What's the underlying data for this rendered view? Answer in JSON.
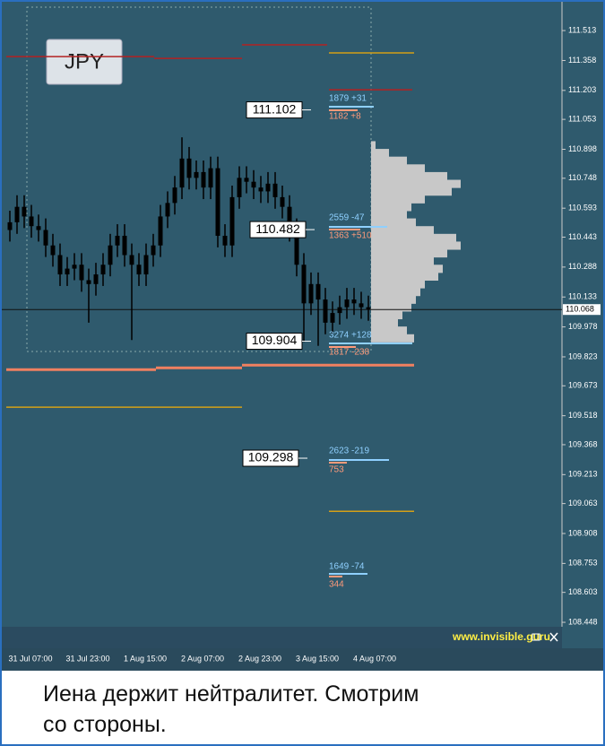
{
  "badge": "JPY",
  "chart_data": {
    "type": "candlestick",
    "categories": [
      null,
      null,
      null,
      "31 Jul 07:00",
      null,
      null,
      null,
      null,
      null,
      null,
      null,
      "31 Jul 23:00",
      null,
      null,
      null,
      null,
      null,
      null,
      null,
      "1 Aug 15:00",
      null,
      null,
      null,
      null,
      null,
      null,
      null,
      "2 Aug 07:00",
      null,
      null,
      null,
      null,
      null,
      null,
      null,
      "2 Aug 23:00",
      null,
      null,
      null,
      null,
      null,
      null,
      null,
      "3 Aug 15:00",
      null,
      null,
      null,
      null,
      null,
      null,
      null,
      "4 Aug 07:00"
    ],
    "open": [
      110.48,
      110.52,
      110.6,
      110.55,
      110.5,
      110.48,
      110.4,
      110.35,
      110.25,
      110.28,
      110.3,
      110.22,
      110.2,
      110.25,
      110.3,
      110.4,
      110.45,
      110.35,
      110.3,
      110.25,
      110.35,
      110.4,
      110.55,
      110.62,
      110.7,
      110.85,
      110.75,
      110.78,
      110.7,
      110.8,
      110.45,
      110.4,
      110.65,
      110.75,
      110.73,
      110.7,
      110.68,
      110.72,
      110.65,
      110.6,
      110.48,
      110.3,
      110.1,
      110.2,
      110.12,
      110.0,
      110.05,
      110.08,
      110.12,
      110.1,
      110.08,
      null
    ],
    "high": [
      110.58,
      110.66,
      110.66,
      110.61,
      110.56,
      110.54,
      110.46,
      110.41,
      110.34,
      110.36,
      110.36,
      110.28,
      110.31,
      110.36,
      110.46,
      110.51,
      110.51,
      110.41,
      110.36,
      110.41,
      110.46,
      110.61,
      110.68,
      110.76,
      110.96,
      110.91,
      110.84,
      110.84,
      110.86,
      110.86,
      110.51,
      110.71,
      110.81,
      110.81,
      110.79,
      110.76,
      110.78,
      110.78,
      110.71,
      110.66,
      110.54,
      110.36,
      110.26,
      110.26,
      110.18,
      110.11,
      110.14,
      110.18,
      110.18,
      110.16,
      110.14,
      null
    ],
    "low": [
      110.42,
      110.46,
      110.49,
      110.44,
      110.42,
      110.34,
      110.29,
      110.19,
      110.19,
      110.22,
      110.16,
      110.0,
      110.14,
      110.19,
      110.24,
      110.34,
      110.29,
      109.91,
      110.19,
      110.19,
      110.29,
      110.34,
      110.49,
      110.56,
      110.64,
      110.69,
      110.69,
      110.64,
      110.64,
      110.39,
      110.34,
      110.34,
      110.59,
      110.67,
      110.64,
      110.62,
      110.62,
      110.59,
      110.54,
      110.42,
      110.24,
      109.9,
      110.04,
      109.88,
      109.94,
      109.94,
      109.99,
      110.02,
      110.04,
      110.02,
      110.01,
      null
    ],
    "close": [
      110.52,
      110.6,
      110.55,
      110.5,
      110.48,
      110.4,
      110.35,
      110.25,
      110.28,
      110.3,
      110.22,
      110.2,
      110.25,
      110.3,
      110.4,
      110.45,
      110.35,
      110.3,
      110.25,
      110.35,
      110.4,
      110.55,
      110.62,
      110.7,
      110.85,
      110.75,
      110.78,
      110.7,
      110.8,
      110.45,
      110.4,
      110.65,
      110.75,
      110.73,
      110.7,
      110.68,
      110.72,
      110.65,
      110.6,
      110.48,
      110.3,
      110.1,
      110.2,
      110.12,
      110.0,
      110.05,
      110.08,
      110.12,
      110.1,
      110.08,
      110.07,
      null
    ],
    "color": "#000000",
    "ylim": [
      108.425,
      111.662
    ],
    "yticks": [
      111.513,
      111.358,
      111.203,
      111.053,
      110.898,
      110.748,
      110.593,
      110.443,
      110.288,
      110.133,
      109.978,
      109.823,
      109.673,
      109.518,
      109.368,
      109.213,
      109.063,
      108.908,
      108.753,
      108.603,
      108.448
    ],
    "last_price": 110.068,
    "levels": [
      {
        "value": 111.378,
        "color": "#b22222"
      },
      {
        "value": 111.369,
        "color": "#b22222"
      },
      {
        "value": 111.439,
        "color": "#b22222"
      },
      {
        "value": 111.206,
        "color": "#b22222"
      },
      {
        "value": 111.397,
        "color": "#d4a017"
      },
      {
        "value": 109.562,
        "color": "#d4a017"
      },
      {
        "value": 109.023,
        "color": "#d4a017"
      },
      {
        "value": 109.757,
        "color": "#f08060"
      },
      {
        "value": 109.766,
        "color": "#f08060"
      },
      {
        "value": 109.78,
        "color": "#f08060"
      }
    ],
    "price_labels": [
      111.102,
      110.482,
      109.904,
      109.298
    ],
    "annotations": [
      {
        "text": "1879 +31",
        "color": "#8fd0ff"
      },
      {
        "text": "1182 +8",
        "color": "#ff9a7a"
      },
      {
        "text": "2559 -47",
        "color": "#8fd0ff"
      },
      {
        "text": "1363 +510",
        "color": "#ff9a7a"
      },
      {
        "text": "3274 +128",
        "color": "#8fd0ff"
      },
      {
        "text": "1817 -238",
        "color": "#ff9a7a"
      },
      {
        "text": "2623 -219",
        "color": "#8fd0ff"
      },
      {
        "text": "753",
        "color": "#ff9a7a"
      },
      {
        "text": "1649 -74",
        "color": "#8fd0ff"
      },
      {
        "text": "344",
        "color": "#ff9a7a"
      }
    ],
    "volume_profile": {
      "prices": [
        110.92,
        110.88,
        110.84,
        110.8,
        110.76,
        110.72,
        110.68,
        110.64,
        110.6,
        110.56,
        110.52,
        110.48,
        110.44,
        110.4,
        110.36,
        110.32,
        110.28,
        110.24,
        110.2,
        110.16,
        110.12,
        110.08,
        110.04,
        110.0,
        109.96,
        109.92
      ],
      "values": [
        5,
        20,
        40,
        60,
        85,
        100,
        90,
        60,
        45,
        40,
        50,
        70,
        95,
        100,
        85,
        70,
        80,
        75,
        60,
        55,
        50,
        45,
        35,
        30,
        40,
        48
      ],
      "color": "#c8c8c8"
    }
  },
  "footer_link": "www.invisible.guru",
  "caption": [
    "Иена держит нейтралитет. Смотрим",
    "со стороны."
  ]
}
